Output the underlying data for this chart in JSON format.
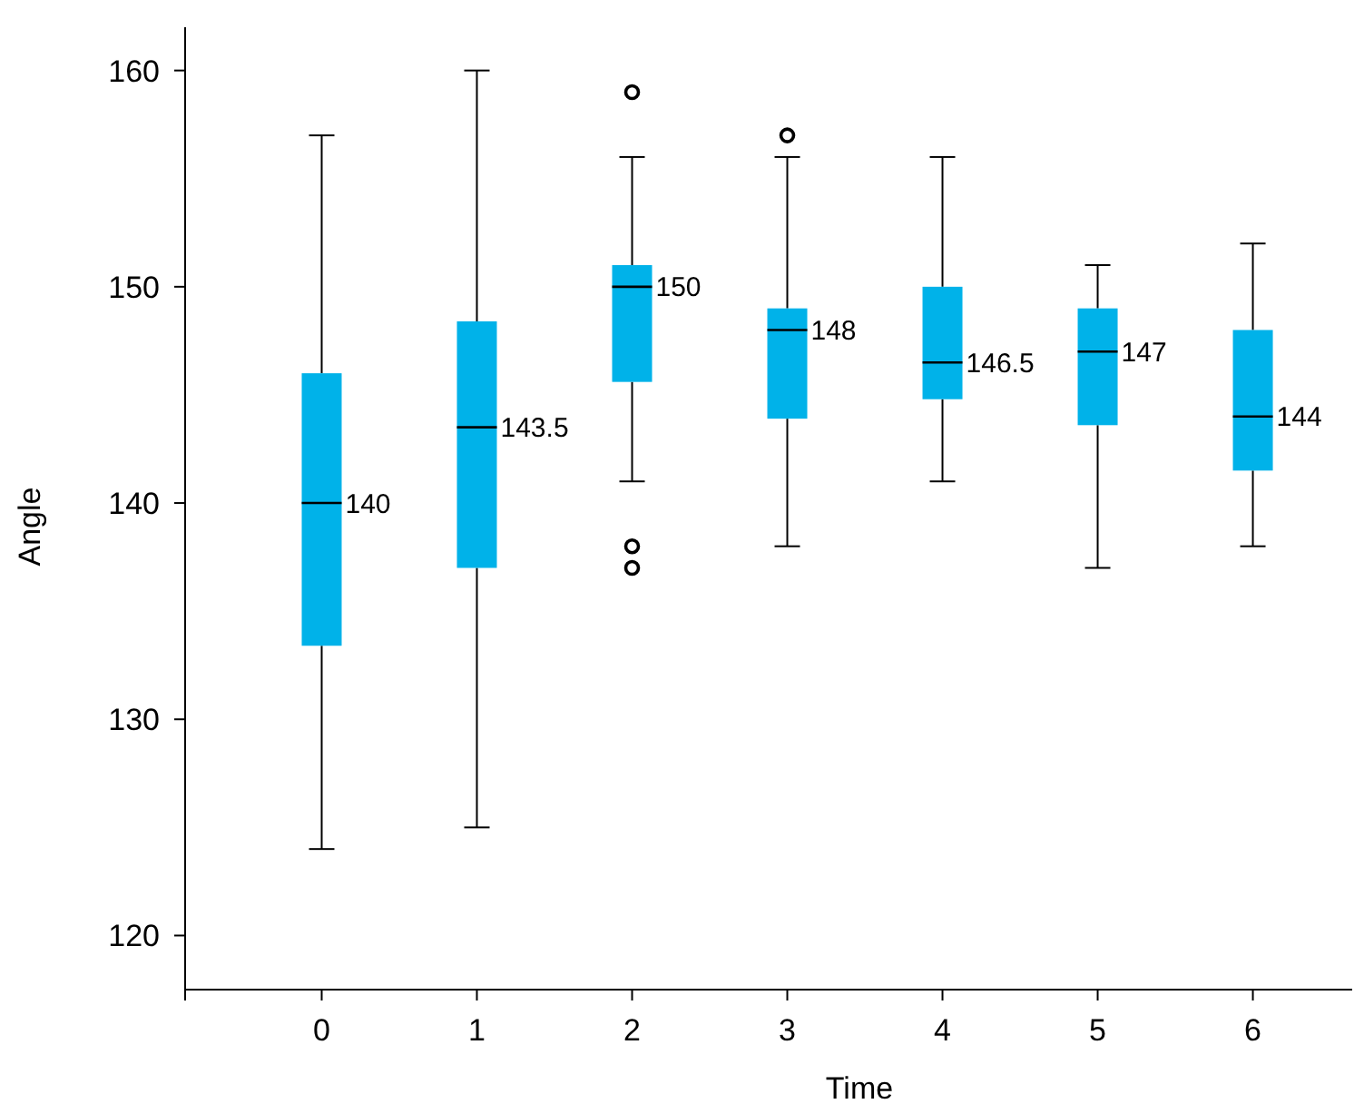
{
  "chart_data": {
    "type": "box",
    "xlabel": "Time",
    "ylabel": "Angle",
    "categories": [
      "0",
      "1",
      "2",
      "3",
      "4",
      "5",
      "6"
    ],
    "color": "#00b2e9",
    "boxes": [
      {
        "low": 124,
        "q1": 133.4,
        "median": 140,
        "q3": 146,
        "high": 157
      },
      {
        "low": 125,
        "q1": 137,
        "median": 143.5,
        "q3": 148.4,
        "high": 160
      },
      {
        "low": 141,
        "q1": 145.6,
        "median": 150,
        "q3": 151,
        "high": 156,
        "outliers": [
          159,
          138,
          137
        ]
      },
      {
        "low": 138,
        "q1": 143.9,
        "median": 148,
        "q3": 149,
        "high": 156,
        "outliers": [
          157
        ]
      },
      {
        "low": 141,
        "q1": 144.8,
        "median": 146.5,
        "q3": 150,
        "high": 156
      },
      {
        "low": 137,
        "q1": 143.6,
        "median": 147,
        "q3": 149,
        "high": 151
      },
      {
        "low": 138,
        "q1": 141.5,
        "median": 144,
        "q3": 148,
        "high": 152
      }
    ],
    "value_labels": [
      "140",
      "143.5",
      "150",
      "148",
      "146.5",
      "147",
      "144"
    ],
    "ylim": [
      117.5,
      162
    ],
    "yticks": [
      120,
      130,
      140,
      150,
      160
    ],
    "grid": false
  }
}
